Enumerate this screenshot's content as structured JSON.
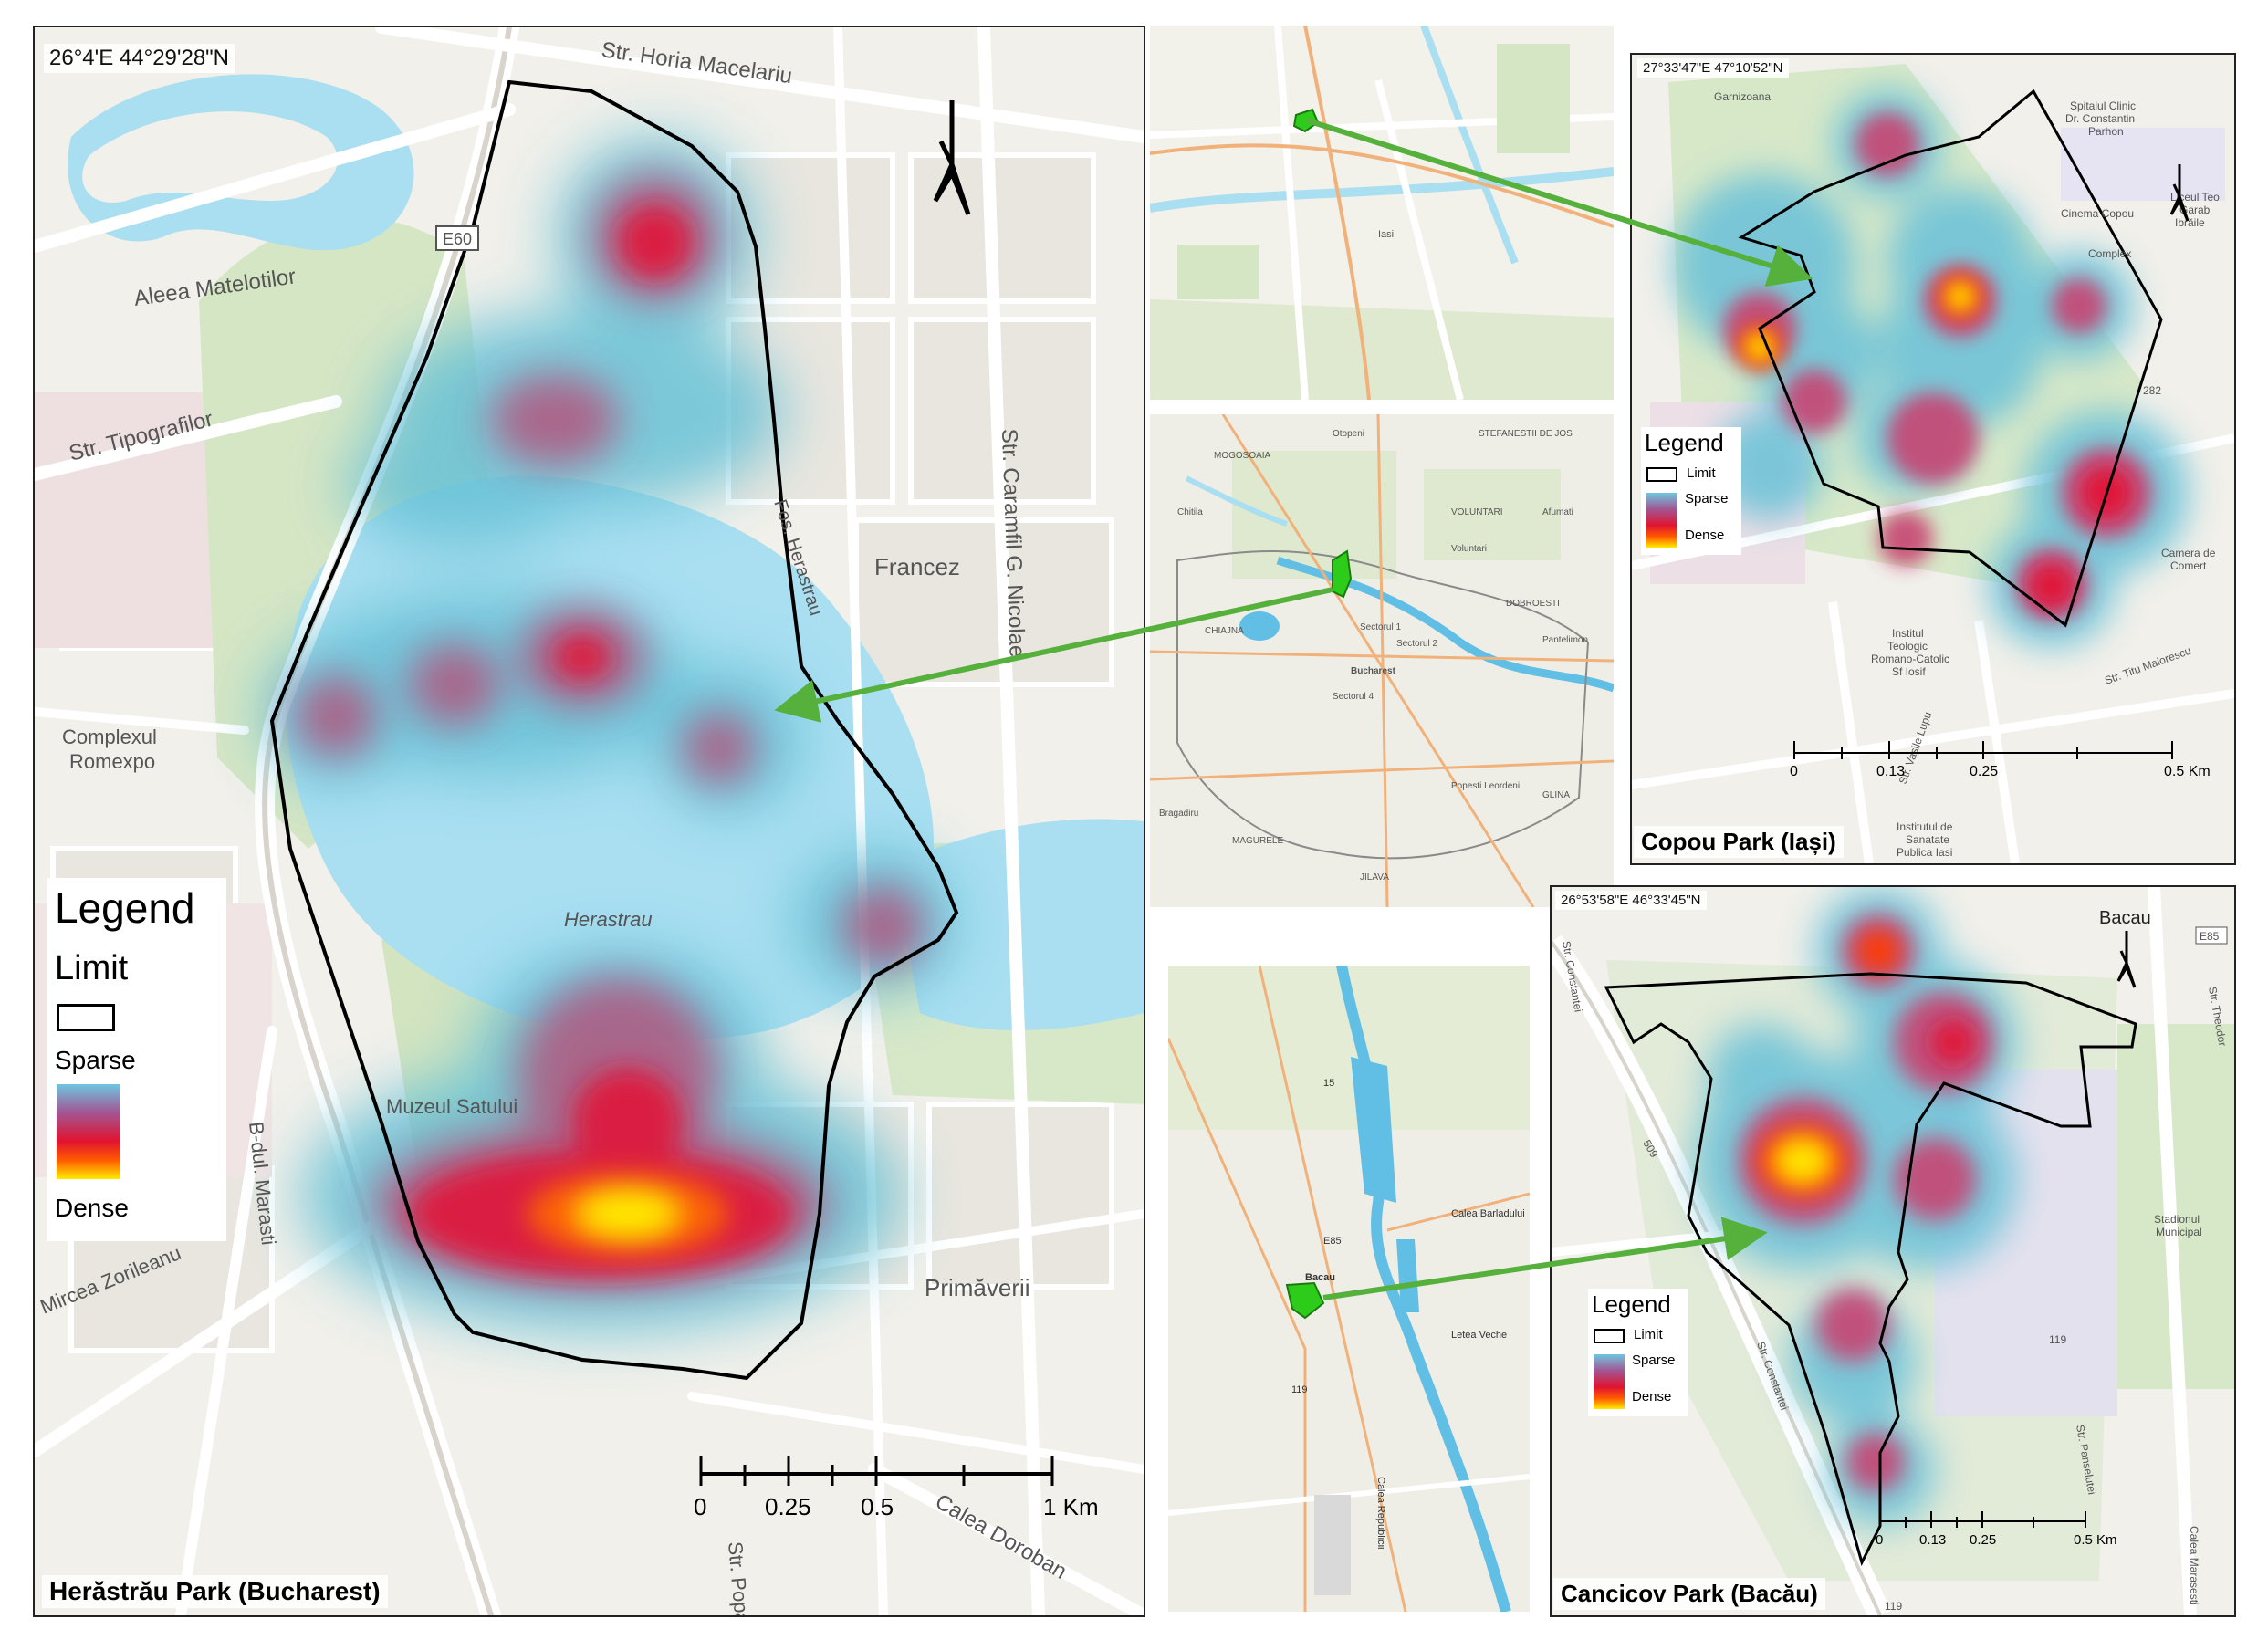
{
  "panels": {
    "main": {
      "coord": "26°4'E 44°29'28\"N",
      "title": "Herăstrău Park (Bucharest)",
      "legend": {
        "title": "Legend",
        "limit_heading": "Limit",
        "sparse": "Sparse",
        "dense": "Dense"
      },
      "scale": {
        "ticks": [
          "0",
          "0.25",
          "0.5",
          "1 Km"
        ]
      },
      "labels": {
        "horia": "Str. Horia Macelariu",
        "matelotilor": "Aleea Matelotilor",
        "tipografilor": "Str. Tipografilor",
        "caramfil": "Str. Caramfil G. Nicolae",
        "francez": "Francez",
        "romexpo1": "Complexul",
        "romexpo2": "Romexpo",
        "herastrau": "Herastrau",
        "muzeul": "Muzeul Satului",
        "marasti": "B-dul. Marasti",
        "zorileanu": "Mircea Zorileanu",
        "primaverii": "Primăverii",
        "dorobanti": "Calea Doroban",
        "popa": "Str. Popa",
        "e60": "E60",
        "fos": "Fos. Herastrau"
      }
    },
    "iasi": {
      "coord": "27°33'47\"E 47°10'52\"N",
      "title": "Copou Park (Iași)",
      "legend": {
        "title": "Legend",
        "limit": "Limit",
        "sparse": "Sparse",
        "dense": "Dense"
      },
      "scale": {
        "ticks": [
          "0",
          "0.13",
          "0.25",
          "0.5 Km"
        ]
      },
      "labels": {
        "garnizoana": "Garnizoana",
        "spital1": "Spitalul Clinic",
        "spital2": "Dr. Constantin",
        "spital3": "Parhon",
        "cinema": "Cinema Copou",
        "complex": "Complex",
        "liceu1": "Liceul Teo",
        "liceu2": "Garab",
        "liceu3": "Ibrăile",
        "camera1": "Camera de",
        "camera2": "Comert",
        "institut1": "Institul",
        "institut2": "Teologic",
        "institut3": "Romano-Catolic",
        "institut4": "Sf Iosif",
        "sanatate1": "Institutul de",
        "sanatate2": "Sanatate",
        "sanatate3": "Publica Iasi",
        "titu": "Str. Titu Maiorescu",
        "vasile": "Str. Vasile Lupu",
        "road282": "282"
      }
    },
    "bacau": {
      "coord": "26°53'58\"E 46°33'45\"N",
      "title": "Cancicov Park (Bacău)",
      "legend": {
        "title": "Legend",
        "limit": "Limit",
        "sparse": "Sparse",
        "dense": "Dense"
      },
      "scale": {
        "ticks": [
          "0",
          "0.13",
          "0.25",
          "0.5 Km"
        ]
      },
      "labels": {
        "bacau": "Bacau",
        "e85": "E85",
        "stadion1": "Stadionul",
        "stadion2": "Municipal",
        "marasesti": "Calea Marasesti",
        "constantei": "Str. Constantei",
        "panselutei": "Str. Panselutei",
        "theodor": "Str. Theodor",
        "r509": "509",
        "r119": "119"
      }
    },
    "inset_iasi": {
      "labels": {
        "iasi": "Iasi"
      }
    },
    "inset_bucharest": {
      "labels": {
        "otopeni": "Otopeni",
        "stefanesti": "STEFANESTII DE JOS",
        "mogosoaia": "MOGOSOAIA",
        "chitila": "Chitila",
        "voluntari": "Voluntari",
        "voluntari2": "VOLUNTARI",
        "afumati": "Afumati",
        "sector1": "Sectorul 1",
        "sector2": "Sectorul 2",
        "sector4": "Sectorul 4",
        "bucharest": "Bucharest",
        "pantelimon": "Pantelimon",
        "dobroesti": "DOBROESTI",
        "chiajna": "CHIAJNA",
        "bragadiru": "Bragadiru",
        "popesti": "Popesti Leordeni",
        "magurele": "MAGURELE",
        "jilava": "JILAVA",
        "glina": "GLINA"
      }
    },
    "inset_bacau": {
      "labels": {
        "bacau": "Bacau",
        "letea": "Letea Veche",
        "barlad": "Calea Barladului",
        "republicii": "Calea Republicii",
        "e85": "E85",
        "r15": "15",
        "r119": "119"
      }
    }
  },
  "colors": {
    "arrow": "#55b03c",
    "water": "#a9dff1",
    "park": "#cfe3bd",
    "limit": "#000000",
    "locator": "#2ecc1a"
  }
}
